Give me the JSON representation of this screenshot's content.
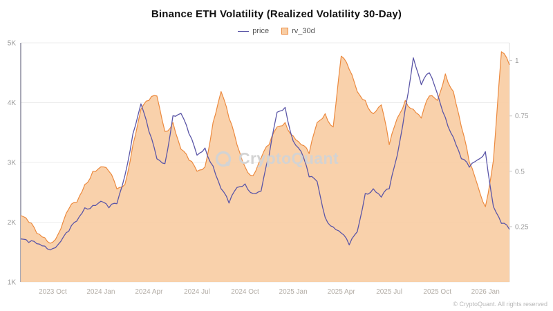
{
  "title": "Binance ETH Volatility (Realized Volatility 30-Day)",
  "legend": {
    "price_label": "price",
    "rv_label": "rv_30d"
  },
  "watermark_text": "CryptoQuant",
  "footer_text": "© CryptoQuant. All rights reserved",
  "colors": {
    "price_line": "#5b56a7",
    "rv_line": "#ec8a3f",
    "rv_fill": "#f8cda4",
    "grid": "#ededed",
    "left_spine": "#50506e",
    "right_spine": "#dcdcdc",
    "axis_text": "#9a9a9a",
    "x_text": "#b3ada6"
  },
  "chart_data": {
    "type": "line",
    "description": "Dual-axis time series: ETH price line (left axis, USD) and 30-day realized volatility area (right axis), semi-monthly samples",
    "x_start_month": "2023-08",
    "points_per_month": 2,
    "x_tick_positions": [
      4,
      10,
      16,
      22,
      28,
      34,
      40,
      46,
      52,
      58
    ],
    "x_tick_labels": [
      "2023 Oct",
      "2024 Jan",
      "2024 Apr",
      "2024 Jul",
      "2024 Oct",
      "2025 Jan",
      "2025 Apr",
      "2025 Jul",
      "2025 Oct",
      "2026 Jan"
    ],
    "left_axis": {
      "min": 1000,
      "max": 5000,
      "ticks": [
        {
          "label": "1K",
          "value": 1000
        },
        {
          "label": "2K",
          "value": 2000
        },
        {
          "label": "3K",
          "value": 3000
        },
        {
          "label": "4K",
          "value": 4000
        },
        {
          "label": "5K",
          "value": 5000
        }
      ]
    },
    "right_axis": {
      "min": 0,
      "max": 1.08,
      "ticks": [
        {
          "label": "0.25",
          "value": 0.25
        },
        {
          "label": "0.5",
          "value": 0.5
        },
        {
          "label": "0.75",
          "value": 0.75
        },
        {
          "label": "1",
          "value": 1
        }
      ]
    },
    "series": [
      {
        "name": "price",
        "axis": "left",
        "style": "line",
        "values": [
          1720,
          1660,
          1640,
          1600,
          1560,
          1680,
          1850,
          2020,
          2240,
          2280,
          2350,
          2240,
          2310,
          2780,
          3480,
          3980,
          3520,
          3060,
          2980,
          3780,
          3820,
          3480,
          3120,
          3240,
          2940,
          2560,
          2320,
          2580,
          2640,
          2480,
          2520,
          3120,
          3840,
          3920,
          3360,
          3180,
          2760,
          2680,
          2080,
          1920,
          1820,
          1620,
          1840,
          2480,
          2560,
          2420,
          2560,
          3120,
          3900,
          4750,
          4300,
          4500,
          4150,
          3750,
          3420,
          3060,
          2920,
          3040,
          3180,
          2260,
          1980,
          1880
        ]
      },
      {
        "name": "rv_30d",
        "axis": "right",
        "style": "area",
        "values": [
          0.3,
          0.27,
          0.22,
          0.2,
          0.18,
          0.24,
          0.33,
          0.36,
          0.44,
          0.5,
          0.52,
          0.5,
          0.42,
          0.44,
          0.62,
          0.78,
          0.82,
          0.84,
          0.68,
          0.72,
          0.6,
          0.55,
          0.5,
          0.52,
          0.72,
          0.86,
          0.74,
          0.62,
          0.52,
          0.48,
          0.56,
          0.62,
          0.7,
          0.72,
          0.66,
          0.62,
          0.58,
          0.72,
          0.76,
          0.7,
          1.02,
          0.96,
          0.86,
          0.82,
          0.76,
          0.8,
          0.62,
          0.74,
          0.82,
          0.78,
          0.74,
          0.84,
          0.82,
          0.94,
          0.86,
          0.7,
          0.54,
          0.44,
          0.34,
          0.55,
          1.04,
          0.98
        ]
      }
    ]
  }
}
